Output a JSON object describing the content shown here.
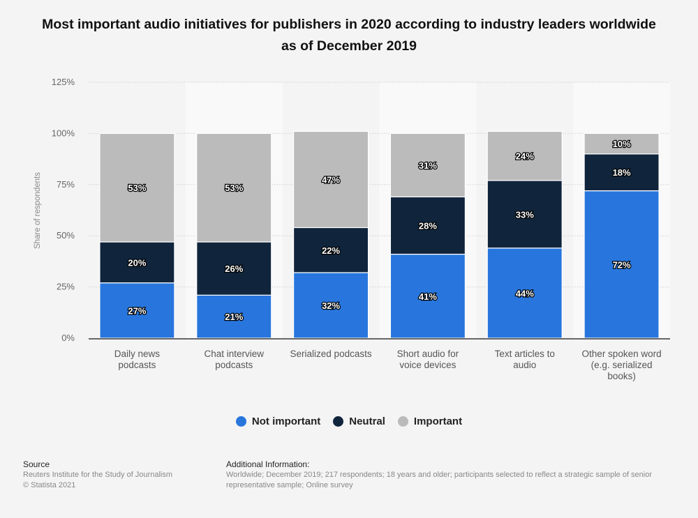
{
  "chart_data": {
    "type": "bar",
    "stacked": true,
    "title": "Most important audio initiatives for publishers in 2020 according to industry leaders worldwide as of December 2019",
    "xlabel": "",
    "ylabel": "Share of respondents",
    "ylim": [
      0,
      125
    ],
    "yticks": [
      "0%",
      "25%",
      "50%",
      "75%",
      "100%",
      "125%"
    ],
    "categories": [
      [
        "Daily news",
        "podcasts"
      ],
      [
        "Chat interview",
        "podcasts"
      ],
      [
        "Serialized podcasts"
      ],
      [
        "Short audio for",
        "voice devices"
      ],
      [
        "Text articles to",
        "audio"
      ],
      [
        "Other spoken word",
        "(e.g. serialized",
        "books)"
      ]
    ],
    "series": [
      {
        "name": "Not important",
        "color": "#2876dd",
        "values": [
          27,
          21,
          32,
          41,
          44,
          72
        ]
      },
      {
        "name": "Neutral",
        "color": "#10253c",
        "values": [
          20,
          26,
          22,
          28,
          33,
          18
        ]
      },
      {
        "name": "Important",
        "color": "#bbbbbb",
        "values": [
          53,
          53,
          47,
          31,
          24,
          10
        ]
      }
    ],
    "legend_position": "bottom",
    "grid": true
  },
  "footer": {
    "source_heading": "Source",
    "source_lines": [
      "Reuters Institute for the Study of Journalism",
      "© Statista 2021"
    ],
    "info_heading": "Additional Information:",
    "info_lines": [
      "Worldwide; December 2019; 217 respondents; 18 years and older; participants selected to reflect a strategic sample of senior",
      "representative sample; Online survey"
    ]
  }
}
